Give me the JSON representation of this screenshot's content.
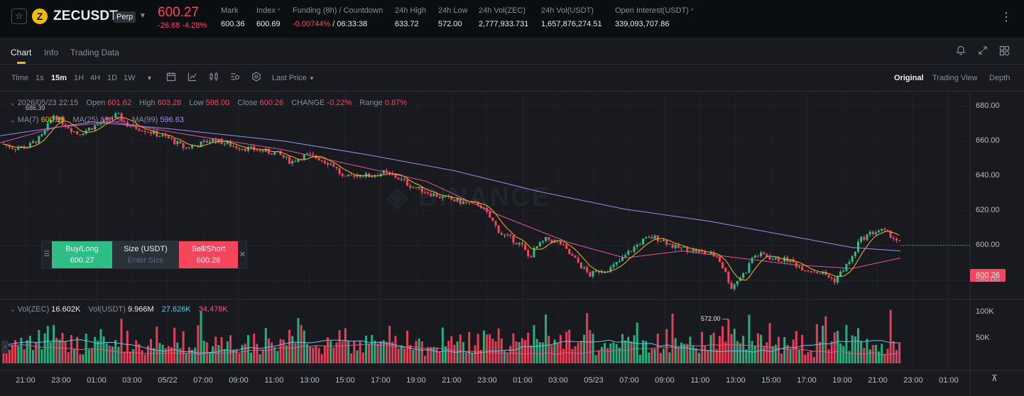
{
  "ticker": {
    "symbol": "ZECUSDT",
    "coin_glyph": "Z",
    "contract_badge": "Perp",
    "last_price": "600.27",
    "change_abs": "-26.88",
    "change_pct": "-4.28%",
    "stats": [
      {
        "label": "Mark",
        "value": "600.36"
      },
      {
        "label": "Index",
        "value": "600.69"
      },
      {
        "label": "Funding (8h) / Countdown",
        "value_neg": "-0.00744%",
        "value": " / 06:33:38"
      },
      {
        "label": "24h High",
        "value": "633.72"
      },
      {
        "label": "24h Low",
        "value": "572.00"
      },
      {
        "label": "24h Vol(ZEC)",
        "value": "2,777,933.731"
      },
      {
        "label": "24h Vol(USDT)",
        "value": "1,657,876,274.51"
      },
      {
        "label": "Open Interest(USDT)",
        "value": "339,093,707.86"
      }
    ],
    "colors": {
      "up": "#2ebd85",
      "down": "#f6465d",
      "accent": "#f0b90b"
    }
  },
  "tabs": [
    "Chart",
    "Info",
    "Trading Data"
  ],
  "toolbar": {
    "time_label": "Time",
    "intervals": [
      "1s",
      "15m",
      "1H",
      "4H",
      "1D",
      "1W"
    ],
    "active_interval": "15m",
    "price_type": "Last Price",
    "views": [
      "Original",
      "Trading View",
      "Depth"
    ],
    "active_view": "Original"
  },
  "ohlc": {
    "datetime": "2026/05/23 22:15",
    "open_label": "Open",
    "open": "601.62",
    "high_label": "High",
    "high": "603.28",
    "low_label": "Low",
    "low": "598.00",
    "close_label": "Close",
    "close": "600.26",
    "change_label": "CHANGE",
    "change": "-0.22%",
    "range_label": "Range",
    "range": "0.87%"
  },
  "ma": {
    "ma7_label": "MA(7)",
    "ma7": "600.19",
    "ma7_color": "#f0b90b",
    "ma25_label": "MA(25)",
    "ma25": "593.50",
    "ma25_color": "#e052a0",
    "ma99_label": "MA(99)",
    "ma99": "596.63",
    "ma99_color": "#9f8bf0"
  },
  "volume": {
    "zec_label": "Vol(ZEC)",
    "zec": "16.602K",
    "usdt_label": "Vol(USDT)",
    "usdt": "9.966M",
    "ma_a": "27.626K",
    "ma_a_color": "#5ec8e5",
    "ma_b": "34.478K",
    "ma_b_color": "#ea5589"
  },
  "order_widget": {
    "buy_label": "Buy/Long",
    "buy_price": "600.27",
    "size_label": "Size (USDT)",
    "size_placeholder": "Enter Size",
    "sell_label": "Sell/Short",
    "sell_price": "600.26"
  },
  "chart_data": {
    "type": "candlestick",
    "interval": "15m",
    "y_axis_labels": [
      "680.00",
      "660.00",
      "640.00",
      "620.00",
      "600.00",
      "580.00"
    ],
    "ylim": [
      570,
      688
    ],
    "x_axis_labels": [
      "21:00",
      "23:00",
      "01:00",
      "03:00",
      "05/22",
      "07:00",
      "09:00",
      "11:00",
      "13:00",
      "15:00",
      "17:00",
      "19:00",
      "21:00",
      "23:00",
      "01:00",
      "03:00",
      "05/23",
      "07:00",
      "09:00",
      "11:00",
      "13:00",
      "15:00",
      "17:00",
      "19:00",
      "21:00",
      "23:00",
      "01:00"
    ],
    "volume_axis_labels": [
      "100K",
      "50K"
    ],
    "highest_marker": "686.39",
    "lowest_marker": "572.00",
    "current_price": "600.26",
    "close_path": [
      [
        0,
        659
      ],
      [
        20,
        656
      ],
      [
        40,
        657
      ],
      [
        60,
        663
      ],
      [
        75,
        675
      ],
      [
        90,
        670
      ],
      [
        110,
        664
      ],
      [
        130,
        668
      ],
      [
        150,
        672
      ],
      [
        165,
        675
      ],
      [
        180,
        669
      ],
      [
        200,
        667
      ],
      [
        220,
        664
      ],
      [
        240,
        661
      ],
      [
        260,
        656
      ],
      [
        280,
        658
      ],
      [
        300,
        661
      ],
      [
        330,
        657
      ],
      [
        360,
        655
      ],
      [
        390,
        653
      ],
      [
        410,
        648
      ],
      [
        430,
        652
      ],
      [
        450,
        650
      ],
      [
        470,
        646
      ],
      [
        485,
        638
      ],
      [
        500,
        641
      ],
      [
        520,
        640
      ],
      [
        540,
        642
      ],
      [
        560,
        639
      ],
      [
        580,
        634
      ],
      [
        600,
        631
      ],
      [
        620,
        628
      ],
      [
        640,
        626
      ],
      [
        660,
        624
      ],
      [
        675,
        624
      ],
      [
        690,
        616
      ],
      [
        705,
        607
      ],
      [
        720,
        604
      ],
      [
        735,
        600
      ],
      [
        745,
        593
      ],
      [
        755,
        599
      ],
      [
        770,
        604
      ],
      [
        790,
        601
      ],
      [
        800,
        596
      ],
      [
        815,
        590
      ],
      [
        830,
        583
      ],
      [
        845,
        586
      ],
      [
        860,
        587
      ],
      [
        875,
        592
      ],
      [
        890,
        598
      ],
      [
        905,
        603
      ],
      [
        920,
        605
      ],
      [
        935,
        603
      ],
      [
        950,
        599
      ],
      [
        970,
        598
      ],
      [
        990,
        596
      ],
      [
        1010,
        594
      ],
      [
        1020,
        586
      ],
      [
        1030,
        576
      ],
      [
        1040,
        581
      ],
      [
        1050,
        585
      ],
      [
        1060,
        594
      ],
      [
        1075,
        595
      ],
      [
        1090,
        592
      ],
      [
        1110,
        592
      ],
      [
        1125,
        588
      ],
      [
        1140,
        586
      ],
      [
        1160,
        584
      ],
      [
        1175,
        580
      ],
      [
        1185,
        585
      ],
      [
        1200,
        593
      ],
      [
        1210,
        603
      ],
      [
        1225,
        607
      ],
      [
        1240,
        609
      ],
      [
        1255,
        606
      ],
      [
        1268,
        601
      ]
    ],
    "ma99_path": [
      [
        0,
        663
      ],
      [
        130,
        671
      ],
      [
        240,
        667
      ],
      [
        400,
        660
      ],
      [
        520,
        652
      ],
      [
        640,
        643
      ],
      [
        760,
        631
      ],
      [
        880,
        621
      ],
      [
        1000,
        614
      ],
      [
        1120,
        605
      ],
      [
        1200,
        599
      ],
      [
        1268,
        597
      ]
    ],
    "ma25_path": [
      [
        0,
        659
      ],
      [
        80,
        668
      ],
      [
        160,
        671
      ],
      [
        260,
        664
      ],
      [
        400,
        655
      ],
      [
        500,
        646
      ],
      [
        600,
        637
      ],
      [
        700,
        618
      ],
      [
        800,
        602
      ],
      [
        880,
        593
      ],
      [
        960,
        597
      ],
      [
        1040,
        593
      ],
      [
        1120,
        589
      ],
      [
        1200,
        587
      ],
      [
        1268,
        593
      ]
    ]
  }
}
